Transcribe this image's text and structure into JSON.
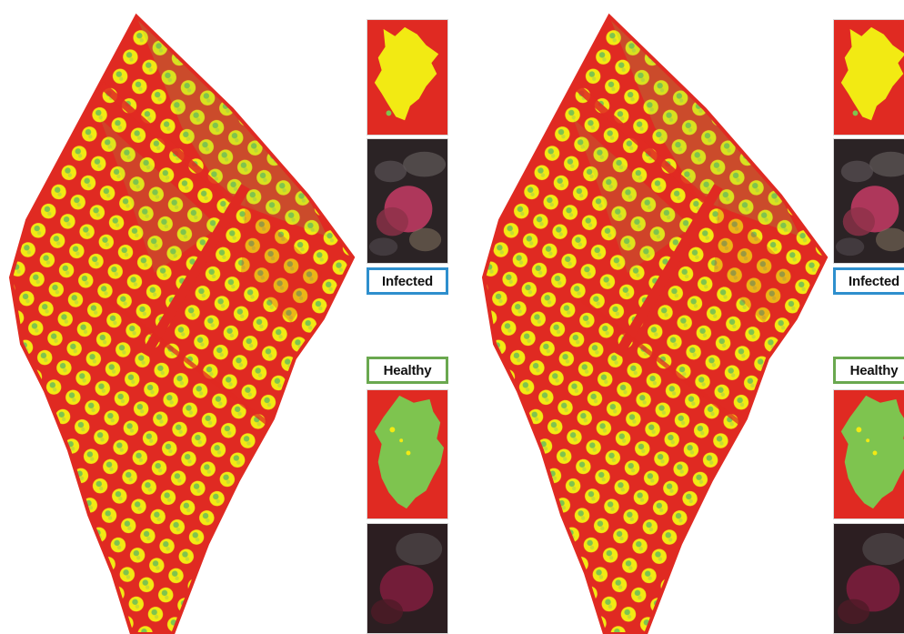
{
  "figure": {
    "left_panel": {
      "infected_label": "Infected",
      "healthy_label": "Healthy"
    },
    "right_panel": {
      "infected_label": "Infected",
      "healthy_label": "Healthy"
    }
  },
  "colors": {
    "background_class": "#e02a22",
    "canopy_class_yellow": "#f2ea13",
    "canopy_class_green": "#7ec44f",
    "infected_border": "#2e8fcd",
    "healthy_border": "#6aa84f",
    "nir_dark": "#2b2325",
    "nir_pink": "#c03a63"
  }
}
